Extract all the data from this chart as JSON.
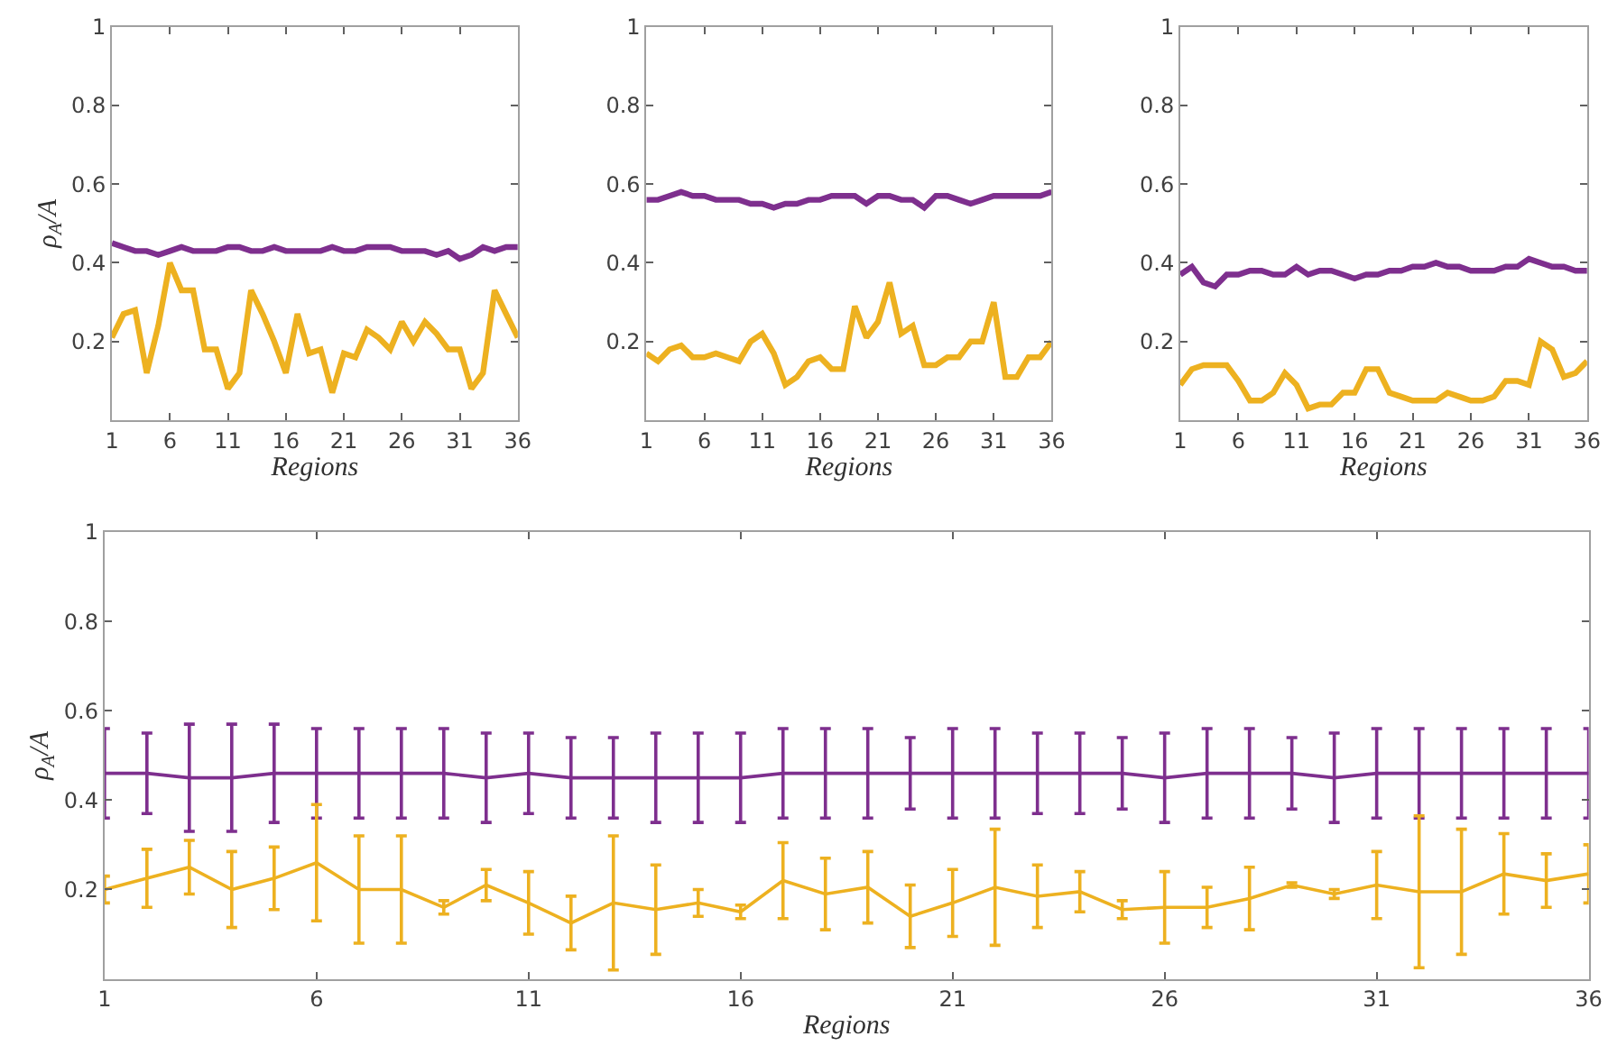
{
  "chart_data": [
    {
      "type": "line",
      "xlabel": "Regions",
      "ylabel": "ρ$_{A}$/A",
      "x": [
        1,
        2,
        3,
        4,
        5,
        6,
        7,
        8,
        9,
        10,
        11,
        12,
        13,
        14,
        15,
        16,
        17,
        18,
        19,
        20,
        21,
        22,
        23,
        24,
        25,
        26,
        27,
        28,
        29,
        30,
        31,
        32,
        33,
        34,
        35,
        36
      ],
      "xlim": [
        1,
        36
      ],
      "xticks": [
        1,
        6,
        11,
        16,
        21,
        26,
        31,
        36
      ],
      "ylim": [
        0,
        1
      ],
      "yticks": [
        0.2,
        0.4,
        0.6,
        0.8,
        1
      ],
      "series": [
        {
          "color": "#7e2f8e",
          "values": [
            0.45,
            0.44,
            0.43,
            0.43,
            0.42,
            0.43,
            0.44,
            0.43,
            0.43,
            0.43,
            0.44,
            0.44,
            0.43,
            0.43,
            0.44,
            0.43,
            0.43,
            0.43,
            0.43,
            0.44,
            0.43,
            0.43,
            0.44,
            0.44,
            0.44,
            0.43,
            0.43,
            0.43,
            0.42,
            0.43,
            0.41,
            0.42,
            0.44,
            0.43,
            0.44,
            0.44
          ]
        },
        {
          "color": "#edb120",
          "values": [
            0.21,
            0.27,
            0.28,
            0.12,
            0.24,
            0.4,
            0.33,
            0.33,
            0.18,
            0.18,
            0.08,
            0.12,
            0.33,
            0.27,
            0.2,
            0.12,
            0.27,
            0.17,
            0.18,
            0.07,
            0.17,
            0.16,
            0.23,
            0.21,
            0.18,
            0.25,
            0.2,
            0.25,
            0.22,
            0.18,
            0.18,
            0.08,
            0.12,
            0.33,
            0.27,
            0.21
          ]
        }
      ]
    },
    {
      "type": "line",
      "xlabel": "Regions",
      "x": [
        1,
        2,
        3,
        4,
        5,
        6,
        7,
        8,
        9,
        10,
        11,
        12,
        13,
        14,
        15,
        16,
        17,
        18,
        19,
        20,
        21,
        22,
        23,
        24,
        25,
        26,
        27,
        28,
        29,
        30,
        31,
        32,
        33,
        34,
        35,
        36
      ],
      "xlim": [
        1,
        36
      ],
      "xticks": [
        1,
        6,
        11,
        16,
        21,
        26,
        31,
        36
      ],
      "ylim": [
        0,
        1
      ],
      "yticks": [
        0.2,
        0.4,
        0.6,
        0.8,
        1
      ],
      "series": [
        {
          "color": "#7e2f8e",
          "values": [
            0.56,
            0.56,
            0.57,
            0.58,
            0.57,
            0.57,
            0.56,
            0.56,
            0.56,
            0.55,
            0.55,
            0.54,
            0.55,
            0.55,
            0.56,
            0.56,
            0.57,
            0.57,
            0.57,
            0.55,
            0.57,
            0.57,
            0.56,
            0.56,
            0.54,
            0.57,
            0.57,
            0.56,
            0.55,
            0.56,
            0.57,
            0.57,
            0.57,
            0.57,
            0.57,
            0.58
          ]
        },
        {
          "color": "#edb120",
          "values": [
            0.17,
            0.15,
            0.18,
            0.19,
            0.16,
            0.16,
            0.17,
            0.16,
            0.15,
            0.2,
            0.22,
            0.17,
            0.09,
            0.11,
            0.15,
            0.16,
            0.13,
            0.13,
            0.29,
            0.21,
            0.25,
            0.35,
            0.22,
            0.24,
            0.14,
            0.14,
            0.16,
            0.16,
            0.2,
            0.2,
            0.3,
            0.11,
            0.11,
            0.16,
            0.16,
            0.2
          ]
        }
      ]
    },
    {
      "type": "line",
      "xlabel": "Regions",
      "x": [
        1,
        2,
        3,
        4,
        5,
        6,
        7,
        8,
        9,
        10,
        11,
        12,
        13,
        14,
        15,
        16,
        17,
        18,
        19,
        20,
        21,
        22,
        23,
        24,
        25,
        26,
        27,
        28,
        29,
        30,
        31,
        32,
        33,
        34,
        35,
        36
      ],
      "xlim": [
        1,
        36
      ],
      "xticks": [
        1,
        6,
        11,
        16,
        21,
        26,
        31,
        36
      ],
      "ylim": [
        0,
        1
      ],
      "yticks": [
        0.2,
        0.4,
        0.6,
        0.8,
        1
      ],
      "series": [
        {
          "color": "#7e2f8e",
          "values": [
            0.37,
            0.39,
            0.35,
            0.34,
            0.37,
            0.37,
            0.38,
            0.38,
            0.37,
            0.37,
            0.39,
            0.37,
            0.38,
            0.38,
            0.37,
            0.36,
            0.37,
            0.37,
            0.38,
            0.38,
            0.39,
            0.39,
            0.4,
            0.39,
            0.39,
            0.38,
            0.38,
            0.38,
            0.39,
            0.39,
            0.41,
            0.4,
            0.39,
            0.39,
            0.38,
            0.38
          ]
        },
        {
          "color": "#edb120",
          "values": [
            0.09,
            0.13,
            0.14,
            0.14,
            0.14,
            0.1,
            0.05,
            0.05,
            0.07,
            0.12,
            0.09,
            0.03,
            0.04,
            0.04,
            0.07,
            0.07,
            0.13,
            0.13,
            0.07,
            0.06,
            0.05,
            0.05,
            0.05,
            0.07,
            0.06,
            0.05,
            0.05,
            0.06,
            0.1,
            0.1,
            0.09,
            0.2,
            0.18,
            0.11,
            0.12,
            0.15
          ]
        }
      ]
    },
    {
      "type": "line",
      "xlabel": "Regions",
      "ylabel": "ρ$_{A}$/A",
      "x": [
        1,
        2,
        3,
        4,
        5,
        6,
        7,
        8,
        9,
        10,
        11,
        12,
        13,
        14,
        15,
        16,
        17,
        18,
        19,
        20,
        21,
        22,
        23,
        24,
        25,
        26,
        27,
        28,
        29,
        30,
        31,
        32,
        33,
        34,
        35,
        36
      ],
      "xlim": [
        1,
        36
      ],
      "xticks": [
        1,
        6,
        11,
        16,
        21,
        26,
        31,
        36
      ],
      "ylim": [
        0,
        1
      ],
      "yticks": [
        0.2,
        0.4,
        0.6,
        0.8,
        1
      ],
      "series": [
        {
          "color": "#7e2f8e",
          "values": [
            0.46,
            0.46,
            0.45,
            0.45,
            0.46,
            0.46,
            0.46,
            0.46,
            0.46,
            0.45,
            0.46,
            0.45,
            0.45,
            0.45,
            0.45,
            0.45,
            0.46,
            0.46,
            0.46,
            0.46,
            0.46,
            0.46,
            0.46,
            0.46,
            0.46,
            0.45,
            0.46,
            0.46,
            0.46,
            0.45,
            0.46,
            0.46,
            0.46,
            0.46,
            0.46,
            0.46
          ],
          "errors": [
            0.1,
            0.09,
            0.12,
            0.12,
            0.11,
            0.1,
            0.1,
            0.1,
            0.1,
            0.1,
            0.09,
            0.09,
            0.09,
            0.1,
            0.1,
            0.1,
            0.1,
            0.1,
            0.1,
            0.08,
            0.1,
            0.1,
            0.09,
            0.09,
            0.08,
            0.1,
            0.1,
            0.1,
            0.08,
            0.1,
            0.1,
            0.1,
            0.1,
            0.1,
            0.1,
            0.1
          ]
        },
        {
          "color": "#edb120",
          "values": [
            0.2,
            0.225,
            0.25,
            0.2,
            0.225,
            0.26,
            0.2,
            0.2,
            0.16,
            0.21,
            0.17,
            0.125,
            0.17,
            0.155,
            0.17,
            0.15,
            0.22,
            0.19,
            0.205,
            0.14,
            0.17,
            0.205,
            0.185,
            0.195,
            0.155,
            0.16,
            0.16,
            0.18,
            0.21,
            0.19,
            0.21,
            0.195,
            0.195,
            0.235,
            0.22,
            0.235
          ],
          "errors": [
            0.03,
            0.065,
            0.06,
            0.085,
            0.07,
            0.13,
            0.12,
            0.12,
            0.015,
            0.035,
            0.07,
            0.06,
            0.15,
            0.1,
            0.03,
            0.015,
            0.085,
            0.08,
            0.08,
            0.07,
            0.075,
            0.13,
            0.07,
            0.045,
            0.02,
            0.08,
            0.045,
            0.07,
            0.005,
            0.01,
            0.075,
            0.17,
            0.14,
            0.09,
            0.06,
            0.065
          ]
        }
      ]
    }
  ]
}
